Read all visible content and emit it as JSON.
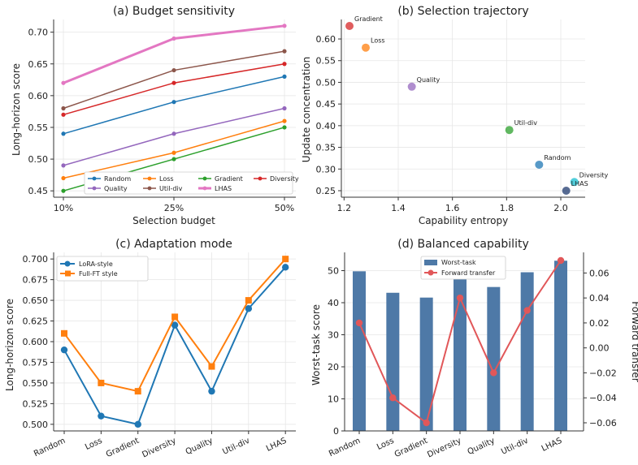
{
  "chart_data": [
    {
      "id": "a",
      "type": "line",
      "title": "(a) Budget sensitivity",
      "xlabel": "Selection budget",
      "ylabel": "Long-horizon score",
      "categories": [
        "10%",
        "25%",
        "50%"
      ],
      "ylim": [
        0.44,
        0.72
      ],
      "yticks": [
        "0.45",
        "0.50",
        "0.55",
        "0.60",
        "0.65",
        "0.70"
      ],
      "grid": true,
      "legend": "bottom-right",
      "series": [
        {
          "name": "Random",
          "color": "#1f77b4",
          "values": [
            0.54,
            0.59,
            0.63
          ]
        },
        {
          "name": "Loss",
          "color": "#ff7f0e",
          "values": [
            0.47,
            0.51,
            0.56
          ]
        },
        {
          "name": "Gradient",
          "color": "#2ca02c",
          "values": [
            0.45,
            0.5,
            0.55
          ]
        },
        {
          "name": "Diversity",
          "color": "#d62728",
          "values": [
            0.57,
            0.62,
            0.65
          ]
        },
        {
          "name": "Quality",
          "color": "#9467bd",
          "values": [
            0.49,
            0.54,
            0.58
          ]
        },
        {
          "name": "Util-div",
          "color": "#8c564b",
          "values": [
            0.58,
            0.64,
            0.67
          ]
        },
        {
          "name": "LHAS",
          "color": "#e377c2",
          "values": [
            0.62,
            0.69,
            0.71
          ]
        }
      ]
    },
    {
      "id": "b",
      "type": "scatter",
      "title": "(b) Selection trajectory",
      "xlabel": "Capability entropy",
      "ylabel": "Update concentration",
      "xlim": [
        1.19,
        2.09
      ],
      "ylim": [
        0.235,
        0.645
      ],
      "xticks": [
        "1.2",
        "1.4",
        "1.6",
        "1.8",
        "2.0"
      ],
      "yticks": [
        "0.25",
        "0.30",
        "0.35",
        "0.40",
        "0.45",
        "0.50",
        "0.55",
        "0.60"
      ],
      "grid": true,
      "points": [
        {
          "name": "Gradient",
          "x": 1.22,
          "y": 0.63,
          "color": "#d62728"
        },
        {
          "name": "Loss",
          "x": 1.28,
          "y": 0.58,
          "color": "#ff7f0e"
        },
        {
          "name": "Quality",
          "x": 1.45,
          "y": 0.49,
          "color": "#9467bd"
        },
        {
          "name": "Util-div",
          "x": 1.81,
          "y": 0.39,
          "color": "#2ca02c"
        },
        {
          "name": "Random",
          "x": 1.92,
          "y": 0.31,
          "color": "#1f77b4"
        },
        {
          "name": "Diversity",
          "x": 2.05,
          "y": 0.27,
          "color": "#17becf"
        },
        {
          "name": "LHAS",
          "x": 2.02,
          "y": 0.25,
          "color": "#1f3a6e"
        }
      ]
    },
    {
      "id": "c",
      "type": "line",
      "title": "(c) Adaptation mode",
      "ylabel": "Long-horizon score",
      "categories": [
        "Random",
        "Loss",
        "Gradient",
        "Diversity",
        "Quality",
        "Util-div",
        "LHAS"
      ],
      "ylim": [
        0.492,
        0.708
      ],
      "yticks": [
        "0.500",
        "0.525",
        "0.550",
        "0.575",
        "0.600",
        "0.625",
        "0.650",
        "0.675",
        "0.700"
      ],
      "grid": true,
      "legend": "top-left",
      "series": [
        {
          "name": "LoRA-style",
          "color": "#1f77b4",
          "marker": "circle",
          "values": [
            0.59,
            0.51,
            0.5,
            0.62,
            0.54,
            0.64,
            0.69
          ]
        },
        {
          "name": "Full-FT style",
          "color": "#ff7f0e",
          "marker": "square",
          "values": [
            0.61,
            0.55,
            0.54,
            0.63,
            0.57,
            0.65,
            0.7
          ]
        }
      ]
    },
    {
      "id": "d",
      "type": "bar+line",
      "title": "(d) Balanced capability",
      "ylabel": "Worst-task score",
      "y2label": "Forward transfer",
      "categories": [
        "Random",
        "Loss",
        "Gradient",
        "Diversity",
        "Quality",
        "Util-div",
        "LHAS"
      ],
      "ylim": [
        0,
        55.7
      ],
      "yticks": [
        "0",
        "10",
        "20",
        "30",
        "40",
        "50"
      ],
      "y2lim": [
        -0.0665,
        0.0765
      ],
      "y2ticks": [
        "−0.06",
        "−0.04",
        "−0.02",
        "0.00",
        "0.02",
        "0.04",
        "0.06"
      ],
      "grid": true,
      "legend": "top-center",
      "series": [
        {
          "name": "Worst-task",
          "type": "bar",
          "color": "#4e79a7",
          "values": [
            49.8,
            43.1,
            41.6,
            50.1,
            44.9,
            49.5,
            53.1
          ]
        },
        {
          "name": "Forward transfer",
          "type": "line",
          "axis": "right",
          "color": "#e15759",
          "values": [
            0.02,
            -0.04,
            -0.06,
            0.04,
            -0.02,
            0.03,
            0.07
          ]
        }
      ]
    }
  ]
}
